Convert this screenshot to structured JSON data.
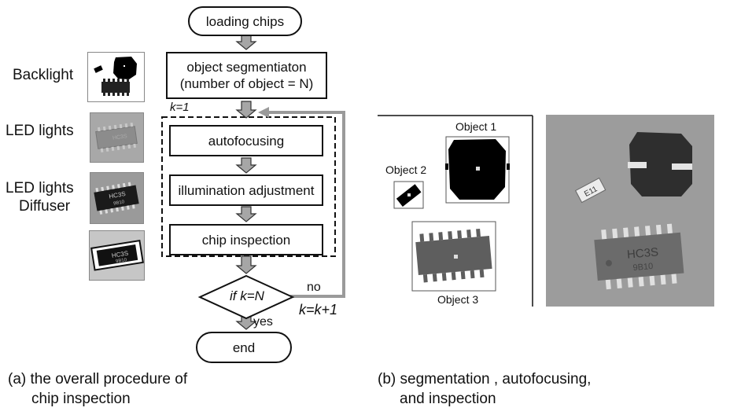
{
  "left_labels": {
    "backlight": "Backlight",
    "led_lights": "LED lights",
    "led_lights_diffuser_1": "LED lights",
    "led_lights_diffuser_2": "Diffuser"
  },
  "flow": {
    "start": "loading chips",
    "segmentation_1": "object segmentiaton",
    "segmentation_2": "(number of object = N)",
    "loop_init": "k=1",
    "autofocus": "autofocusing",
    "illumination": "illumination adjustment",
    "inspection": "chip inspection",
    "decision": "if k=N",
    "no": "no",
    "yes": "yes",
    "increment": "k=k+1",
    "end": "end"
  },
  "segmentation_panel": {
    "object1": "Object 1",
    "object2": "Object 2",
    "object3": "Object 3"
  },
  "photo": {
    "chip_text_1": "HC3S",
    "chip_text_2": "9B10",
    "resistor_text": "E11"
  },
  "thumb_text": {
    "chip_a": "HC3S",
    "chip_b": "9B10"
  },
  "captions": {
    "a_line1": "(a) the overall procedure of",
    "a_line2": "chip inspection",
    "b_line1": "(b) segmentation , autofocusing,",
    "b_line2": "and inspection"
  }
}
